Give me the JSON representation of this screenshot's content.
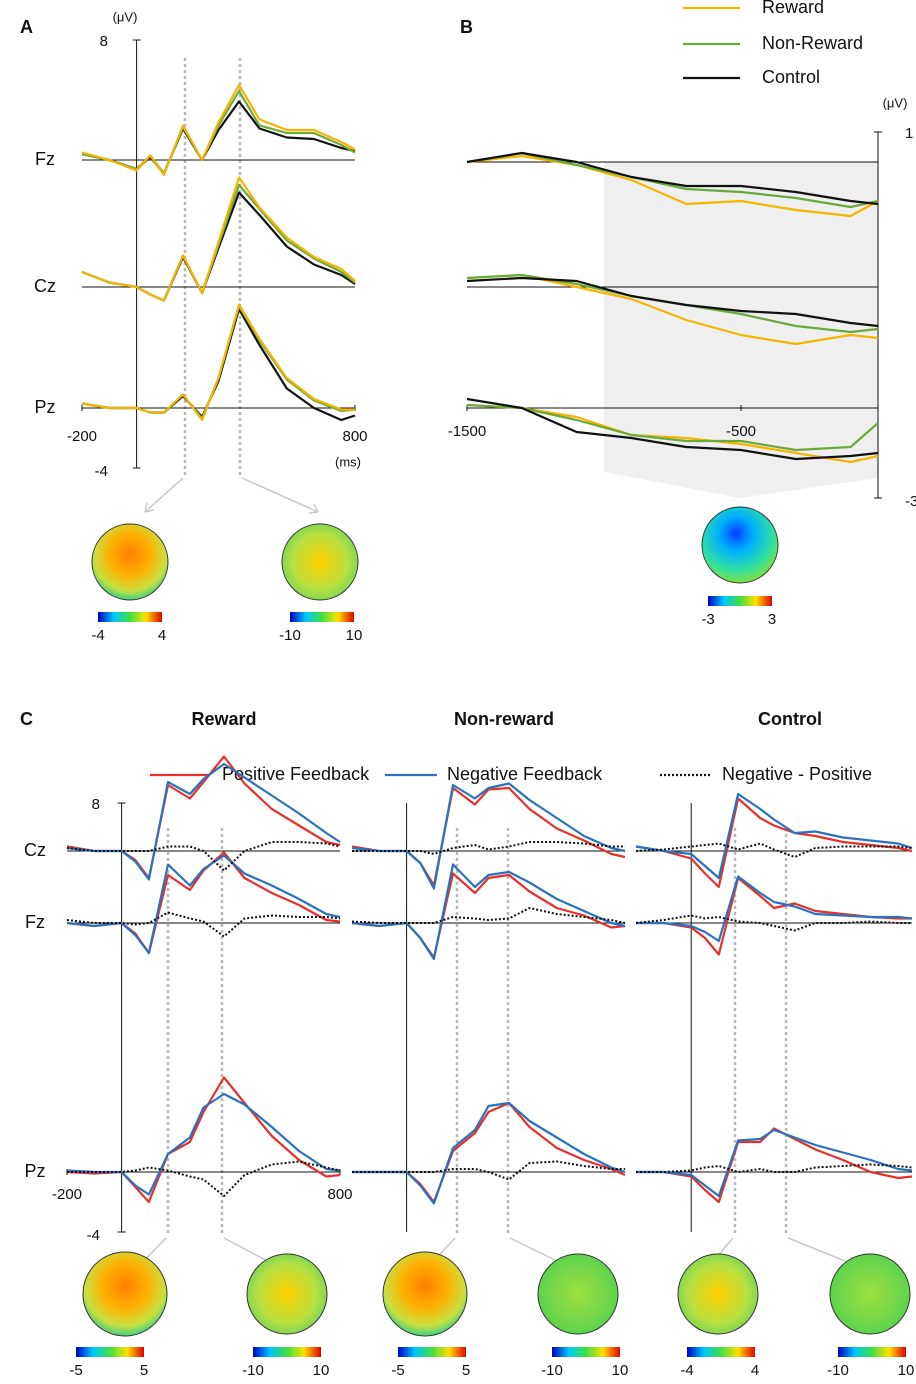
{
  "chart_data": [
    {
      "type": "line",
      "panel": "A",
      "y_unit": "(μV)",
      "x_unit": "(ms)",
      "rows": [
        "Fz",
        "Cz",
        "Pz"
      ],
      "x": [
        -200,
        -100,
        0,
        50,
        100,
        170,
        240,
        300,
        375,
        450,
        550,
        650,
        750,
        800
      ],
      "xlim": [
        -200,
        800
      ],
      "xticks": [
        -200,
        800
      ],
      "ylim": [
        -4,
        8
      ],
      "yticks": [
        8,
        -4
      ],
      "series": [
        {
          "color": "#111111",
          "values": [
            [
              0.4,
              0,
              -0.6,
              0.2,
              -0.9,
              2.1,
              0,
              2,
              3.9,
              2.1,
              1.5,
              1.4,
              0.8,
              0.6
            ],
            [
              1,
              0.3,
              0,
              -0.5,
              -0.9,
              2,
              -0.4,
              2.6,
              6.3,
              4.8,
              2.7,
              1.5,
              0.8,
              0.2
            ],
            [
              0.3,
              0,
              0,
              -0.3,
              -0.3,
              0.8,
              -0.6,
              1.8,
              6.6,
              4.2,
              1.3,
              0,
              -0.8,
              -0.5
            ]
          ]
        },
        {
          "color": "#6aaa3a",
          "values": [
            [
              0.4,
              0,
              -0.6,
              0.3,
              -0.9,
              2.2,
              0,
              2.3,
              4.6,
              2.3,
              1.8,
              1.8,
              1,
              0.5
            ],
            [
              1,
              0.3,
              0,
              -0.5,
              -0.9,
              2.1,
              -0.4,
              2.8,
              6.8,
              5.2,
              3.1,
              1.9,
              1,
              0.3
            ],
            [
              0.3,
              0,
              0,
              -0.3,
              -0.3,
              0.9,
              -0.7,
              2,
              6.8,
              4.5,
              1.9,
              0.5,
              -0.2,
              -0.1
            ]
          ]
        },
        {
          "color": "#f5b400",
          "values": [
            [
              0.5,
              0,
              -0.7,
              0.3,
              -1,
              2.3,
              0,
              2.5,
              5,
              2.7,
              2,
              2,
              1.2,
              0.7
            ],
            [
              1,
              0.3,
              0,
              -0.5,
              -0.9,
              2.1,
              -0.4,
              3,
              7.3,
              5.3,
              3.3,
              2,
              1.2,
              0.4
            ],
            [
              0.3,
              0,
              0,
              -0.3,
              -0.3,
              0.9,
              -0.8,
              2,
              6.9,
              4.6,
              2,
              0.6,
              -0.1,
              -0.1
            ]
          ]
        }
      ],
      "colorbars": [
        [
          -4,
          4
        ],
        [
          -10,
          10
        ]
      ]
    },
    {
      "type": "line",
      "panel": "B",
      "y_unit": "(μV)",
      "x": [
        -1500,
        -1300,
        -1100,
        -900,
        -700,
        -500,
        -300,
        -100,
        0
      ],
      "xlim": [
        -1500,
        0
      ],
      "xticks": [
        -1500,
        -500
      ],
      "ylim": [
        -3,
        1
      ],
      "yticks": [
        1,
        -3
      ],
      "series": [
        {
          "name": "Reward",
          "color": "#f5b400",
          "values": [
            [
              0,
              0.2,
              -0.1,
              -0.6,
              -1.4,
              -1.3,
              -1.6,
              -1.8,
              -1.3
            ],
            [
              0.3,
              0.4,
              0,
              -0.4,
              -1.1,
              -1.6,
              -1.9,
              -1.6,
              -1.7
            ],
            [
              0.1,
              0,
              -0.3,
              -0.9,
              -1,
              -1.2,
              -1.5,
              -1.8,
              -1.6
            ]
          ]
        },
        {
          "name": "Non-Reward",
          "color": "#6aaa3a",
          "values": [
            [
              0,
              0.3,
              -0.1,
              -0.5,
              -0.9,
              -1,
              -1.2,
              -1.5,
              -1.3
            ],
            [
              0.3,
              0.4,
              0.1,
              -0.3,
              -0.6,
              -0.9,
              -1.3,
              -1.5,
              -1.4
            ],
            [
              0.1,
              0,
              -0.4,
              -0.9,
              -1.1,
              -1.1,
              -1.4,
              -1.3,
              -0.5
            ]
          ]
        },
        {
          "name": "Control",
          "color": "#111111",
          "values": [
            [
              0,
              0.3,
              0,
              -0.5,
              -0.8,
              -0.8,
              -1,
              -1.3,
              -1.4
            ],
            [
              0.2,
              0.3,
              0.2,
              -0.3,
              -0.6,
              -0.8,
              -0.9,
              -1.2,
              -1.3
            ],
            [
              0.3,
              0,
              -0.8,
              -1,
              -1.3,
              -1.4,
              -1.7,
              -1.6,
              -1.5
            ]
          ]
        }
      ],
      "colorbars": [
        [
          -3,
          3
        ]
      ]
    },
    {
      "type": "line",
      "panel": "C",
      "title": "Reward",
      "rows": [
        "Fz",
        "Cz",
        "Pz"
      ],
      "x": [
        -200,
        -100,
        0,
        50,
        100,
        170,
        250,
        300,
        375,
        450,
        550,
        650,
        750,
        800
      ],
      "xlim": [
        -200,
        800
      ],
      "xticks": [
        -200,
        800
      ],
      "ylim": [
        -4,
        8
      ],
      "yticks": [
        8,
        -4
      ],
      "series": [
        {
          "name": "Positive  Feedback",
          "color": "#e8302a",
          "style": "solid",
          "values": [
            [
              0,
              -0.2,
              0,
              -0.7,
              -2,
              3.2,
              2.2,
              3.5,
              4.7,
              3,
              2,
              1.2,
              0.2,
              0.1
            ],
            [
              0.3,
              0,
              0,
              -0.6,
              -1.8,
              4.4,
              3.5,
              4.6,
              6.3,
              4.5,
              2.8,
              1.7,
              0.6,
              0.4
            ],
            [
              0,
              -0.1,
              0,
              -1,
              -2,
              1.2,
              2,
              4,
              6.3,
              4.6,
              2.4,
              0.8,
              -0.3,
              -0.2
            ]
          ]
        },
        {
          "name": "Negative  Feedback",
          "color": "#2a72c0",
          "style": "solid",
          "values": [
            [
              0,
              -0.2,
              0,
              -0.8,
              -2,
              3.9,
              2.5,
              3.6,
              4.5,
              3.3,
              2.5,
              1.6,
              0.6,
              0.4
            ],
            [
              0.2,
              0,
              0,
              -0.7,
              -1.9,
              4.6,
              3.8,
              4.8,
              5.8,
              4.9,
              3.7,
              2.5,
              1.2,
              0.6
            ],
            [
              0.1,
              0,
              0,
              -0.9,
              -1.5,
              1.2,
              2.3,
              4.3,
              5.2,
              4.5,
              3,
              1.4,
              0.2,
              0.1
            ]
          ]
        },
        {
          "name": "Negative  - Positive",
          "color": "#111111",
          "style": "dotted",
          "values": [
            [
              0.2,
              0,
              0,
              -0.1,
              0,
              0.7,
              0.3,
              0.1,
              -0.9,
              0.3,
              0.5,
              0.4,
              0.4,
              0.3
            ],
            [
              0.2,
              0,
              0,
              0,
              0,
              0.3,
              0.3,
              0,
              -1.3,
              0,
              0.6,
              0.6,
              0.5,
              0.3
            ],
            [
              0,
              0,
              0,
              0.1,
              0.3,
              0.1,
              -0.3,
              -0.5,
              -1.6,
              -0.2,
              0.5,
              0.7,
              0.3,
              0.1
            ]
          ]
        }
      ],
      "colorbars": [
        [
          -5,
          5
        ],
        [
          -10,
          10
        ]
      ]
    },
    {
      "type": "line",
      "title": "Non-reward",
      "x": [
        -200,
        -100,
        0,
        50,
        100,
        170,
        250,
        300,
        375,
        450,
        550,
        650,
        750,
        800
      ],
      "xlim": [
        -200,
        800
      ],
      "ylim": [
        -4,
        8
      ],
      "series": [
        {
          "color": "#e8302a",
          "style": "solid",
          "values": [
            [
              0,
              -0.2,
              0,
              -1,
              -2.3,
              3.3,
              2,
              3,
              3.2,
              2.1,
              1,
              0.5,
              -0.3,
              -0.2
            ],
            [
              0.3,
              0,
              0,
              -0.8,
              -2.3,
              4.2,
              3.1,
              4.1,
              4.2,
              2.8,
              1.5,
              0.7,
              -0.2,
              -0.4
            ],
            [
              0,
              0,
              0,
              -0.8,
              -2,
              1.4,
              2.6,
              4,
              4.6,
              3,
              1.6,
              0.8,
              0.2,
              -0.2
            ]
          ]
        },
        {
          "color": "#2a72c0",
          "style": "solid",
          "values": [
            [
              0,
              -0.2,
              0,
              -1,
              -2.4,
              3.9,
              2.4,
              3.2,
              3.4,
              2.7,
              1.6,
              0.8,
              0,
              -0.2
            ],
            [
              0.2,
              0,
              0,
              -0.8,
              -2.5,
              4.4,
              3.5,
              4.2,
              4.5,
              3.4,
              2.2,
              1,
              0.2,
              0
            ],
            [
              0,
              0,
              0,
              -0.9,
              -2.1,
              1.6,
              2.8,
              4.4,
              4.6,
              3.4,
              2.3,
              1.2,
              0.3,
              0
            ]
          ]
        },
        {
          "color": "#111111",
          "style": "dotted",
          "values": [
            [
              0.1,
              0,
              0,
              0,
              0,
              0.4,
              0.3,
              0.2,
              0.3,
              1,
              0.6,
              0.4,
              0.2,
              0
            ],
            [
              0,
              0,
              0,
              0,
              -0.2,
              0.2,
              0.4,
              0.1,
              0.3,
              0.6,
              0.6,
              0.5,
              0.3,
              0.3
            ],
            [
              0,
              0,
              0,
              0,
              0,
              0.2,
              0.2,
              0,
              -0.5,
              0.6,
              0.7,
              0.4,
              0.2,
              0.2
            ]
          ]
        }
      ],
      "colorbars": [
        [
          -5,
          5
        ],
        [
          -10,
          10
        ]
      ]
    },
    {
      "type": "line",
      "title": "Control",
      "x": [
        -200,
        -100,
        0,
        50,
        100,
        170,
        250,
        300,
        375,
        450,
        550,
        650,
        750,
        800
      ],
      "xlim": [
        -200,
        800
      ],
      "ylim": [
        -4,
        8
      ],
      "series": [
        {
          "color": "#e8302a",
          "style": "solid",
          "values": [
            [
              0,
              0,
              -0.3,
              -1,
              -2.1,
              3,
              1.8,
              1,
              1.3,
              0.8,
              0.6,
              0.4,
              0.3,
              0.3
            ],
            [
              0.3,
              0,
              -0.5,
              -1.5,
              -2.4,
              3.5,
              2.2,
              1.7,
              1.2,
              1,
              0.6,
              0.4,
              0.2,
              0
            ],
            [
              0,
              0,
              -0.3,
              -1.2,
              -2,
              2,
              2,
              2.9,
              2.2,
              1.5,
              0.8,
              0,
              -0.4,
              -0.3
            ]
          ]
        },
        {
          "color": "#2a72c0",
          "style": "solid",
          "values": [
            [
              0,
              0,
              -0.2,
              -0.6,
              -1.2,
              3.1,
              2,
              1.4,
              1.1,
              0.6,
              0.5,
              0.4,
              0.4,
              0.3
            ],
            [
              0.3,
              0,
              -0.2,
              -1,
              -1.8,
              3.8,
              2.8,
              2.1,
              1.2,
              1.3,
              0.9,
              0.7,
              0.5,
              0.2
            ],
            [
              0,
              0,
              -0.2,
              -0.9,
              -1.6,
              2.1,
              2.2,
              2.8,
              2.3,
              1.8,
              1.3,
              0.8,
              0.2,
              0.1
            ]
          ]
        },
        {
          "color": "#111111",
          "style": "dotted",
          "values": [
            [
              0,
              0.2,
              0.5,
              0.3,
              0.4,
              0.1,
              0,
              -0.2,
              -0.5,
              0,
              0,
              0.1,
              0,
              0
            ],
            [
              0,
              0.1,
              0.3,
              0.4,
              0.5,
              0.1,
              0.5,
              0.1,
              -0.4,
              0.2,
              0.3,
              0.3,
              0.3,
              0.2
            ],
            [
              0,
              0,
              0.1,
              0.3,
              0.4,
              0,
              0.2,
              0,
              0,
              0.3,
              0.4,
              0.5,
              0.4,
              0.3
            ]
          ]
        }
      ],
      "colorbars": [
        [
          -4,
          4
        ],
        [
          -10,
          10
        ]
      ]
    }
  ]
}
